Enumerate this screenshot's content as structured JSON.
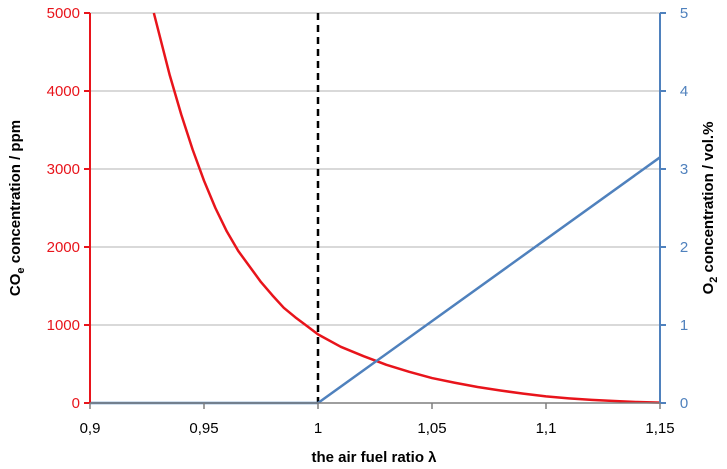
{
  "chart_data": {
    "type": "line",
    "xlabel": "the air fuel ratio λ",
    "ylabel_left": {
      "main": "CO",
      "sub": "e",
      "rest": " concentration / ppm"
    },
    "ylabel_right": {
      "main": "O",
      "sub": "2",
      "rest": " concentration / vol.%"
    },
    "x_ticks": [
      0.9,
      0.95,
      1,
      1.05,
      1.1,
      1.15
    ],
    "x_tick_labels": [
      "0,9",
      "0,95",
      "1",
      "1,05",
      "1,1",
      "1,15"
    ],
    "xlim": [
      0.9,
      1.15
    ],
    "ylim_left": [
      0,
      5000
    ],
    "y_ticks_left": [
      0,
      1000,
      2000,
      3000,
      4000,
      5000
    ],
    "y_tick_labels_left": [
      "0",
      "1000",
      "2000",
      "3000",
      "4000",
      "5000"
    ],
    "ylim_right": [
      0,
      5
    ],
    "y_ticks_right": [
      0,
      1,
      2,
      3,
      4,
      5
    ],
    "y_tick_labels_right": [
      "0",
      "1",
      "2",
      "3",
      "4",
      "5"
    ],
    "grid": true,
    "reference_line": {
      "x": 1,
      "style": "dashed",
      "color": "#000000"
    },
    "series": [
      {
        "axis": "left",
        "color": "#e8141b",
        "x": [
          0.928,
          0.935,
          0.94,
          0.945,
          0.95,
          0.955,
          0.96,
          0.965,
          0.97,
          0.975,
          0.98,
          0.985,
          0.99,
          0.995,
          1.0,
          1.01,
          1.02,
          1.03,
          1.04,
          1.05,
          1.06,
          1.07,
          1.08,
          1.09,
          1.1,
          1.11,
          1.12,
          1.13,
          1.14,
          1.15
        ],
        "y": [
          5000,
          4200,
          3700,
          3250,
          2850,
          2500,
          2200,
          1950,
          1750,
          1550,
          1380,
          1220,
          1100,
          990,
          880,
          720,
          600,
          490,
          400,
          320,
          260,
          205,
          160,
          120,
          85,
          60,
          40,
          25,
          12,
          5
        ]
      },
      {
        "axis": "right",
        "color": "#4f81bd",
        "x": [
          0.9,
          1.0,
          1.15
        ],
        "y": [
          0,
          0,
          3.15
        ]
      }
    ]
  }
}
